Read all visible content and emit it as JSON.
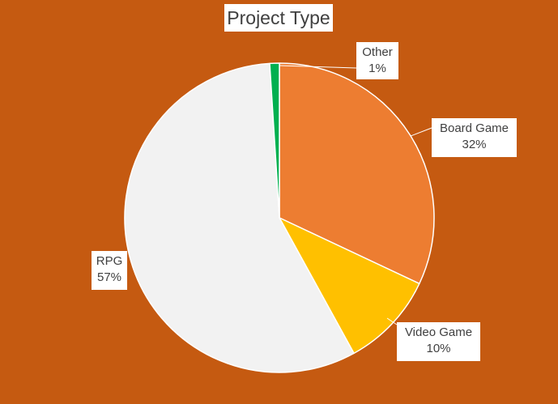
{
  "chart_data": {
    "type": "pie",
    "title": "Project Type",
    "categories": [
      "Board Game",
      "Video Game",
      "RPG",
      "Other"
    ],
    "values": [
      32,
      10,
      57,
      1
    ],
    "value_labels": [
      "32%",
      "10%",
      "57%",
      "1%"
    ],
    "colors": {
      "Board Game": "#ED7D31",
      "Video Game": "#FFC000",
      "RPG": "#F2F2F2",
      "Other": "#00B050"
    },
    "background": "#C55A11",
    "legend": "none",
    "start_angle": "12 o'clock",
    "direction": "clockwise"
  }
}
